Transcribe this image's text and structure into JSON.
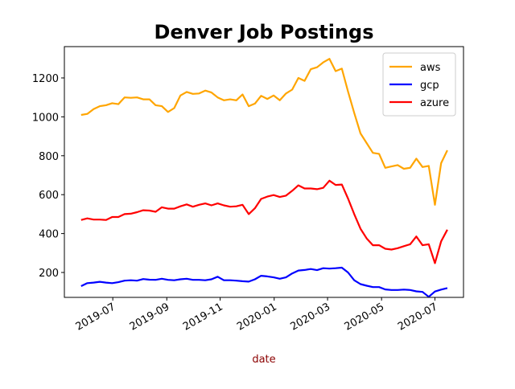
{
  "chart_data": {
    "type": "line",
    "title": "Denver Job Postings",
    "xlabel": "date",
    "categories": [
      null,
      null,
      null,
      null,
      null,
      null,
      null,
      null,
      null,
      null,
      null,
      null,
      null,
      null,
      null,
      null,
      null,
      null,
      null,
      null,
      null,
      null,
      null,
      null,
      null,
      null,
      null,
      null,
      null,
      null,
      null,
      null,
      null,
      null,
      null,
      null,
      null,
      null,
      null,
      null,
      null,
      null,
      null,
      null,
      null,
      null,
      null,
      null,
      null,
      null,
      null,
      null,
      null,
      null,
      null,
      null,
      null,
      null,
      null,
      null
    ],
    "series": [
      {
        "name": "aws",
        "color": "orange",
        "values": [
          1010,
          1015,
          1040,
          1055,
          1060,
          1070,
          1065,
          1100,
          1098,
          1100,
          1090,
          1090,
          1060,
          1055,
          1025,
          1045,
          1110,
          1128,
          1118,
          1120,
          1135,
          1125,
          1100,
          1085,
          1090,
          1085,
          1115,
          1055,
          1068,
          1108,
          1092,
          1110,
          1085,
          1120,
          1140,
          1200,
          1185,
          1245,
          1255,
          1280,
          1298,
          1235,
          1248,
          1130,
          1020,
          915,
          865,
          815,
          810,
          738,
          745,
          752,
          733,
          738,
          785,
          742,
          748,
          548,
          762,
          828
        ]
      },
      {
        "name": "gcp",
        "color": "blue",
        "values": [
          130,
          145,
          148,
          152,
          148,
          145,
          150,
          158,
          160,
          158,
          166,
          163,
          162,
          168,
          162,
          160,
          165,
          168,
          162,
          162,
          160,
          165,
          178,
          160,
          160,
          158,
          155,
          153,
          165,
          183,
          180,
          175,
          168,
          175,
          195,
          210,
          213,
          218,
          212,
          222,
          220,
          222,
          225,
          200,
          160,
          140,
          132,
          125,
          125,
          113,
          110,
          110,
          112,
          110,
          103,
          100,
          75,
          102,
          112,
          120
        ]
      },
      {
        "name": "azure",
        "color": "red",
        "values": [
          470,
          478,
          472,
          472,
          470,
          485,
          485,
          500,
          502,
          510,
          520,
          518,
          512,
          535,
          528,
          528,
          540,
          550,
          538,
          548,
          555,
          545,
          555,
          545,
          538,
          540,
          548,
          500,
          530,
          578,
          590,
          598,
          588,
          595,
          620,
          648,
          632,
          632,
          628,
          635,
          672,
          650,
          652,
          580,
          500,
          425,
          375,
          340,
          340,
          322,
          318,
          325,
          335,
          345,
          385,
          340,
          345,
          248,
          360,
          420
        ]
      }
    ],
    "xlim": [
      -2.7,
      61.6
    ],
    "xticks": [
      {
        "value": 5.1,
        "label": "2019-07"
      },
      {
        "value": 13.8,
        "label": "2019-09"
      },
      {
        "value": 22.4,
        "label": "2019-11"
      },
      {
        "value": 31.1,
        "label": "2020-01"
      },
      {
        "value": 39.7,
        "label": "2020-03"
      },
      {
        "value": 48.4,
        "label": "2020-05"
      },
      {
        "value": 57.0,
        "label": "2020-07"
      }
    ],
    "ylim": [
      72,
      1361
    ],
    "yticks": [
      200,
      400,
      600,
      800,
      1000,
      1200
    ],
    "grid": false,
    "legend": "upper right"
  }
}
